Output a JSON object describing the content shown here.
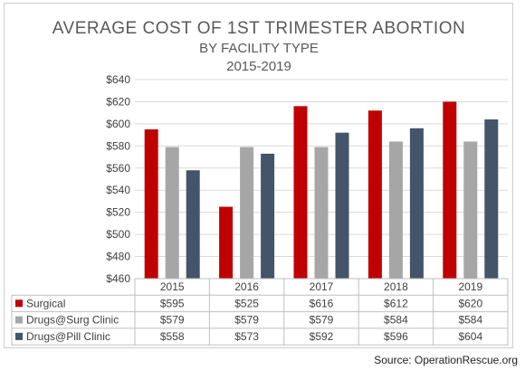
{
  "chart_data": {
    "type": "bar",
    "title": "AVERAGE COST OF 1ST TRIMESTER ABORTION",
    "subtitle": "BY FACILITY TYPE",
    "subtitle2": "2015-2019",
    "categories": [
      "2015",
      "2016",
      "2017",
      "2018",
      "2019"
    ],
    "ylim": [
      460,
      640
    ],
    "yticks": [
      460,
      480,
      500,
      520,
      540,
      560,
      580,
      600,
      620,
      640
    ],
    "ytick_labels": [
      "$460",
      "$480",
      "$500",
      "$520",
      "$540",
      "$560",
      "$580",
      "$600",
      "$620",
      "$640"
    ],
    "grid": true,
    "legend": "data-table",
    "series": [
      {
        "name": "Surgical",
        "color": "#c00000",
        "values": [
          595,
          525,
          616,
          612,
          620
        ],
        "labels": [
          "$595",
          "$525",
          "$616",
          "$612",
          "$620"
        ]
      },
      {
        "name": "Drugs@Surg Clinic",
        "color": "#a6a6a6",
        "values": [
          579,
          579,
          579,
          584,
          584
        ],
        "labels": [
          "$579",
          "$579",
          "$579",
          "$584",
          "$584"
        ]
      },
      {
        "name": "Drugs@Pill Clinic",
        "color": "#44546a",
        "values": [
          558,
          573,
          592,
          596,
          604
        ],
        "labels": [
          "$558",
          "$573",
          "$592",
          "$596",
          "$604"
        ]
      }
    ]
  },
  "source": "Source: OperationRescue.org"
}
